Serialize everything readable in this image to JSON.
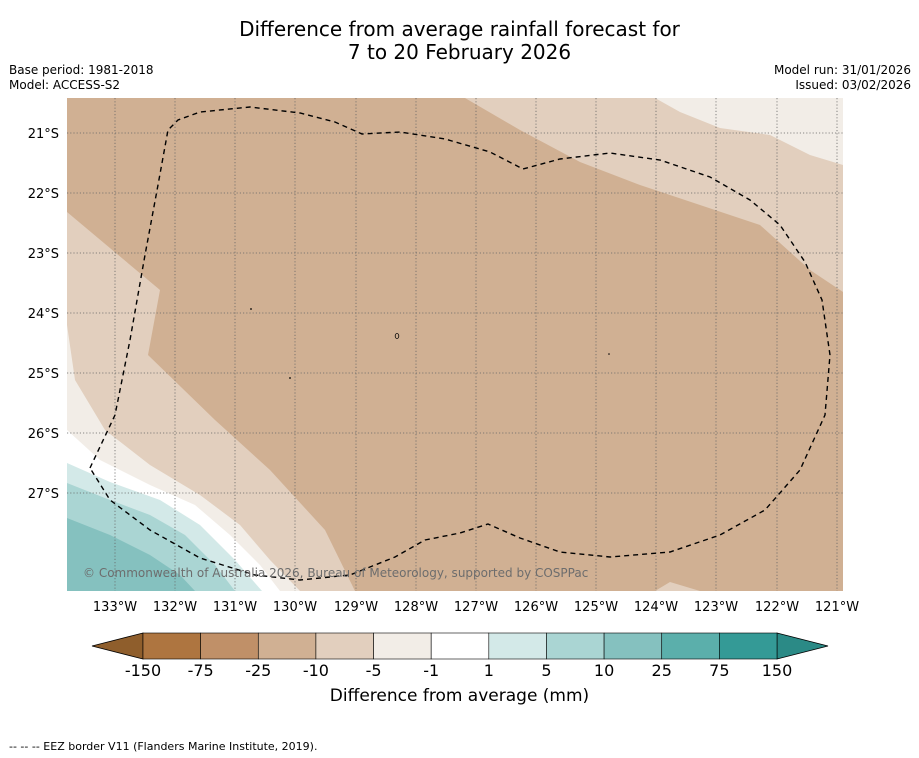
{
  "title": {
    "line1": "Difference from average rainfall forecast for",
    "line2": "7 to 20 February 2026"
  },
  "meta": {
    "base_period": "Base period: 1981-2018",
    "model": "Model: ACCESS-S2",
    "model_run": "Model run: 31/01/2026",
    "issued": "Issued: 03/02/2026"
  },
  "map": {
    "lat_labels": [
      "21°S",
      "22°S",
      "23°S",
      "24°S",
      "25°S",
      "26°S",
      "27°S"
    ],
    "lon_labels": [
      "133°W",
      "132°W",
      "131°W",
      "130°W",
      "129°W",
      "128°W",
      "127°W",
      "126°W",
      "125°W",
      "124°W",
      "123°W",
      "122°W",
      "121°W"
    ],
    "copyright": "© Commonwealth of Australia 2026, Bureau of Meteorology, supported by COSPPac",
    "colors": {
      "c_neg150": "#a87239",
      "c_neg75": "#c0916a",
      "c_neg25": "#d0b093",
      "c_neg10": "#e2cfbe",
      "c_neg5": "#f2ede7",
      "c_neg1": "#ffffff",
      "c_p1": "#d3e9e8",
      "c_p5": "#aad5d3",
      "c_p10": "#85c1bf",
      "c_p25": "#5bafab",
      "c_p75": "#349a96",
      "c_p150": "#1f7f7b"
    }
  },
  "colorbar": {
    "ticks": [
      "-150",
      "-75",
      "-25",
      "-10",
      "-5",
      "-1",
      "1",
      "5",
      "10",
      "25",
      "75",
      "150"
    ],
    "colors": [
      "#c0916a",
      "#d0b093",
      "#e2cfbe",
      "#f2ede7",
      "#ffffff",
      "#ffffff",
      "#d3e9e8",
      "#aad5d3",
      "#85c1bf",
      "#5bafab",
      "#349a96"
    ],
    "bin_colors": [
      "#ae7540",
      "#c09068",
      "#d0b093",
      "#e2cfbe",
      "#f2ede7",
      "#ffffff",
      "#d3e9e8",
      "#aad5d3",
      "#85c1bf",
      "#5bafab",
      "#349a96"
    ],
    "end_low": "#8f5e2c",
    "end_high": "#2b8a86",
    "title": "Difference from average (mm)"
  },
  "footer": "--  --  -- EEZ border V11 (Flanders Marine Institute, 2019)."
}
